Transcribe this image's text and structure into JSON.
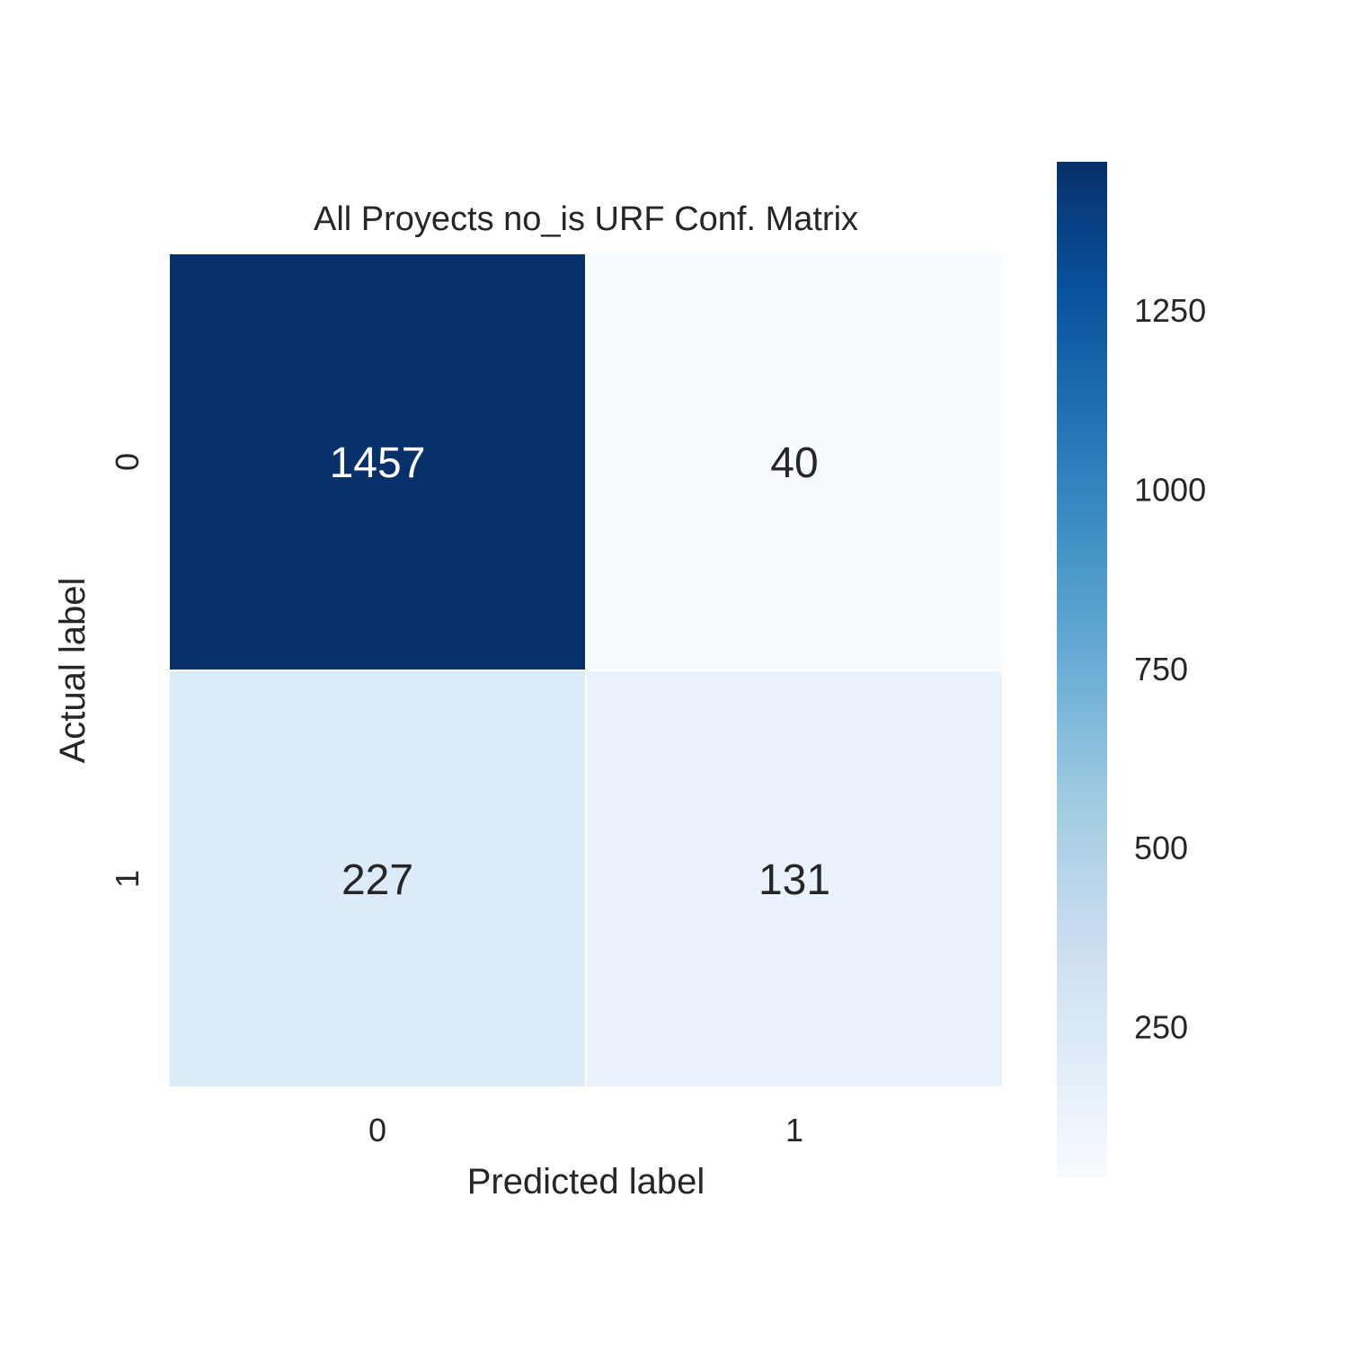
{
  "chart_data": {
    "type": "heatmap",
    "title": "All Proyects no_is URF Conf. Matrix",
    "xlabel": "Predicted label",
    "ylabel": "Actual label",
    "x_categories": [
      "0",
      "1"
    ],
    "y_categories": [
      "0",
      "1"
    ],
    "values": [
      [
        1457,
        40
      ],
      [
        227,
        131
      ]
    ],
    "colormap": "Blues",
    "colorbar": {
      "range": [
        40,
        1457
      ],
      "ticks": [
        250,
        500,
        750,
        1000,
        1250
      ],
      "tick_labels": [
        "250",
        "500",
        "750",
        "1000",
        "1250"
      ]
    },
    "grid": false
  }
}
